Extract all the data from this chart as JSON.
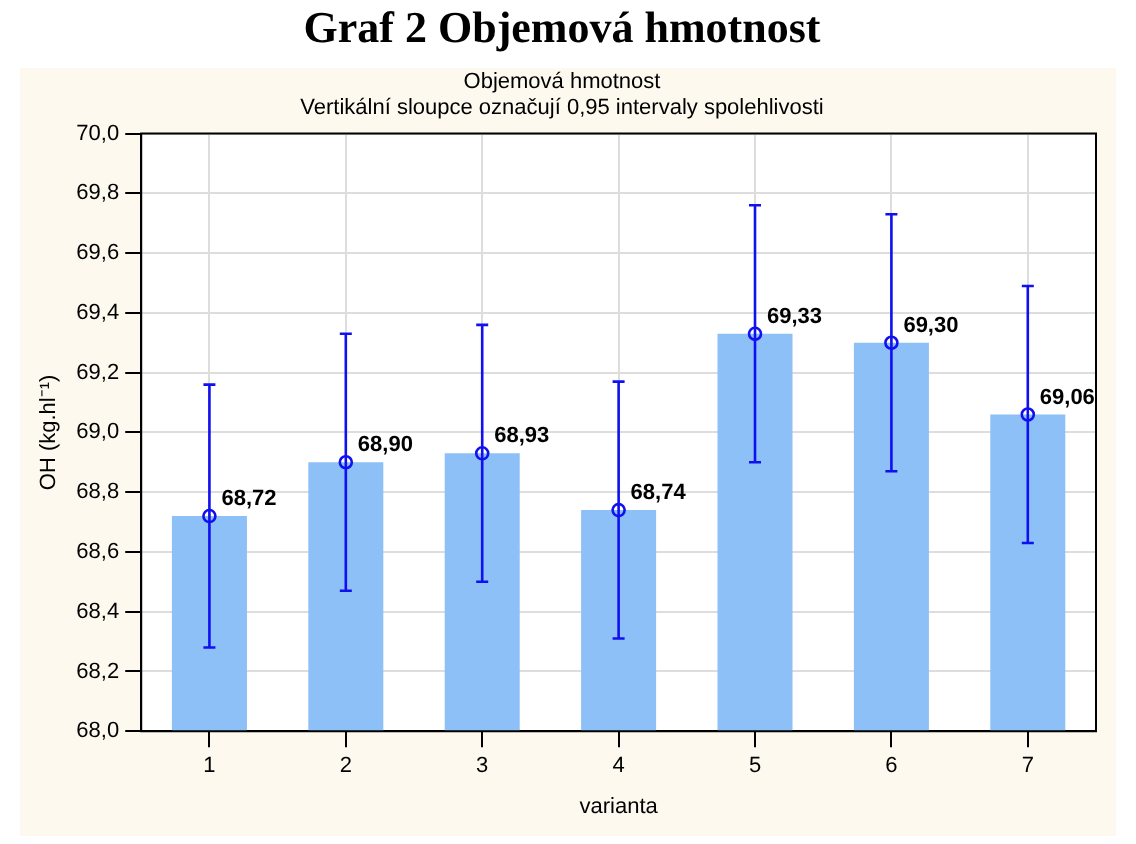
{
  "chart_data": {
    "type": "bar",
    "title": "Graf 2 Objemová hmotnost",
    "subtitle": "Objemová hmotnost\nVertikální sloupce označují 0,95 intervaly spolehlivosti",
    "xlabel": "varianta",
    "ylabel": "OH (kg.hl⁻¹)",
    "categories": [
      "1",
      "2",
      "3",
      "4",
      "5",
      "6",
      "7"
    ],
    "series": [
      {
        "color": "#8cc0f7",
        "values": [
          68.72,
          68.9,
          68.93,
          68.74,
          69.33,
          69.3,
          69.06
        ],
        "value_labels": [
          "68,72",
          "68,90",
          "68,93",
          "68,74",
          "69,33",
          "69,30",
          "69,06"
        ]
      },
      {
        "type": "scatter",
        "color": "#1010f0",
        "x": [
          "1",
          "2",
          "3",
          "4",
          "5",
          "6",
          "7"
        ],
        "values": [
          68.72,
          68.9,
          68.93,
          68.74,
          69.33,
          69.3,
          69.06
        ],
        "errors": [
          0.44,
          0.43,
          0.43,
          0.43,
          0.43,
          0.43,
          0.43
        ],
        "marker": "circle"
      }
    ],
    "grid": true,
    "ylim": [
      68.0,
      70.0
    ],
    "yticks": [
      {
        "value": 68.0,
        "label": "68,0"
      },
      {
        "value": 68.2,
        "label": "68,2"
      },
      {
        "value": 68.4,
        "label": "68,4"
      },
      {
        "value": 68.6,
        "label": "68,6"
      },
      {
        "value": 68.8,
        "label": "68,8"
      },
      {
        "value": 69.0,
        "label": "69,0"
      },
      {
        "value": 69.2,
        "label": "69,2"
      },
      {
        "value": 69.4,
        "label": "69,4"
      },
      {
        "value": 69.6,
        "label": "69,6"
      },
      {
        "value": 69.8,
        "label": "69,8"
      },
      {
        "value": 70.0,
        "label": "70,0"
      }
    ]
  }
}
